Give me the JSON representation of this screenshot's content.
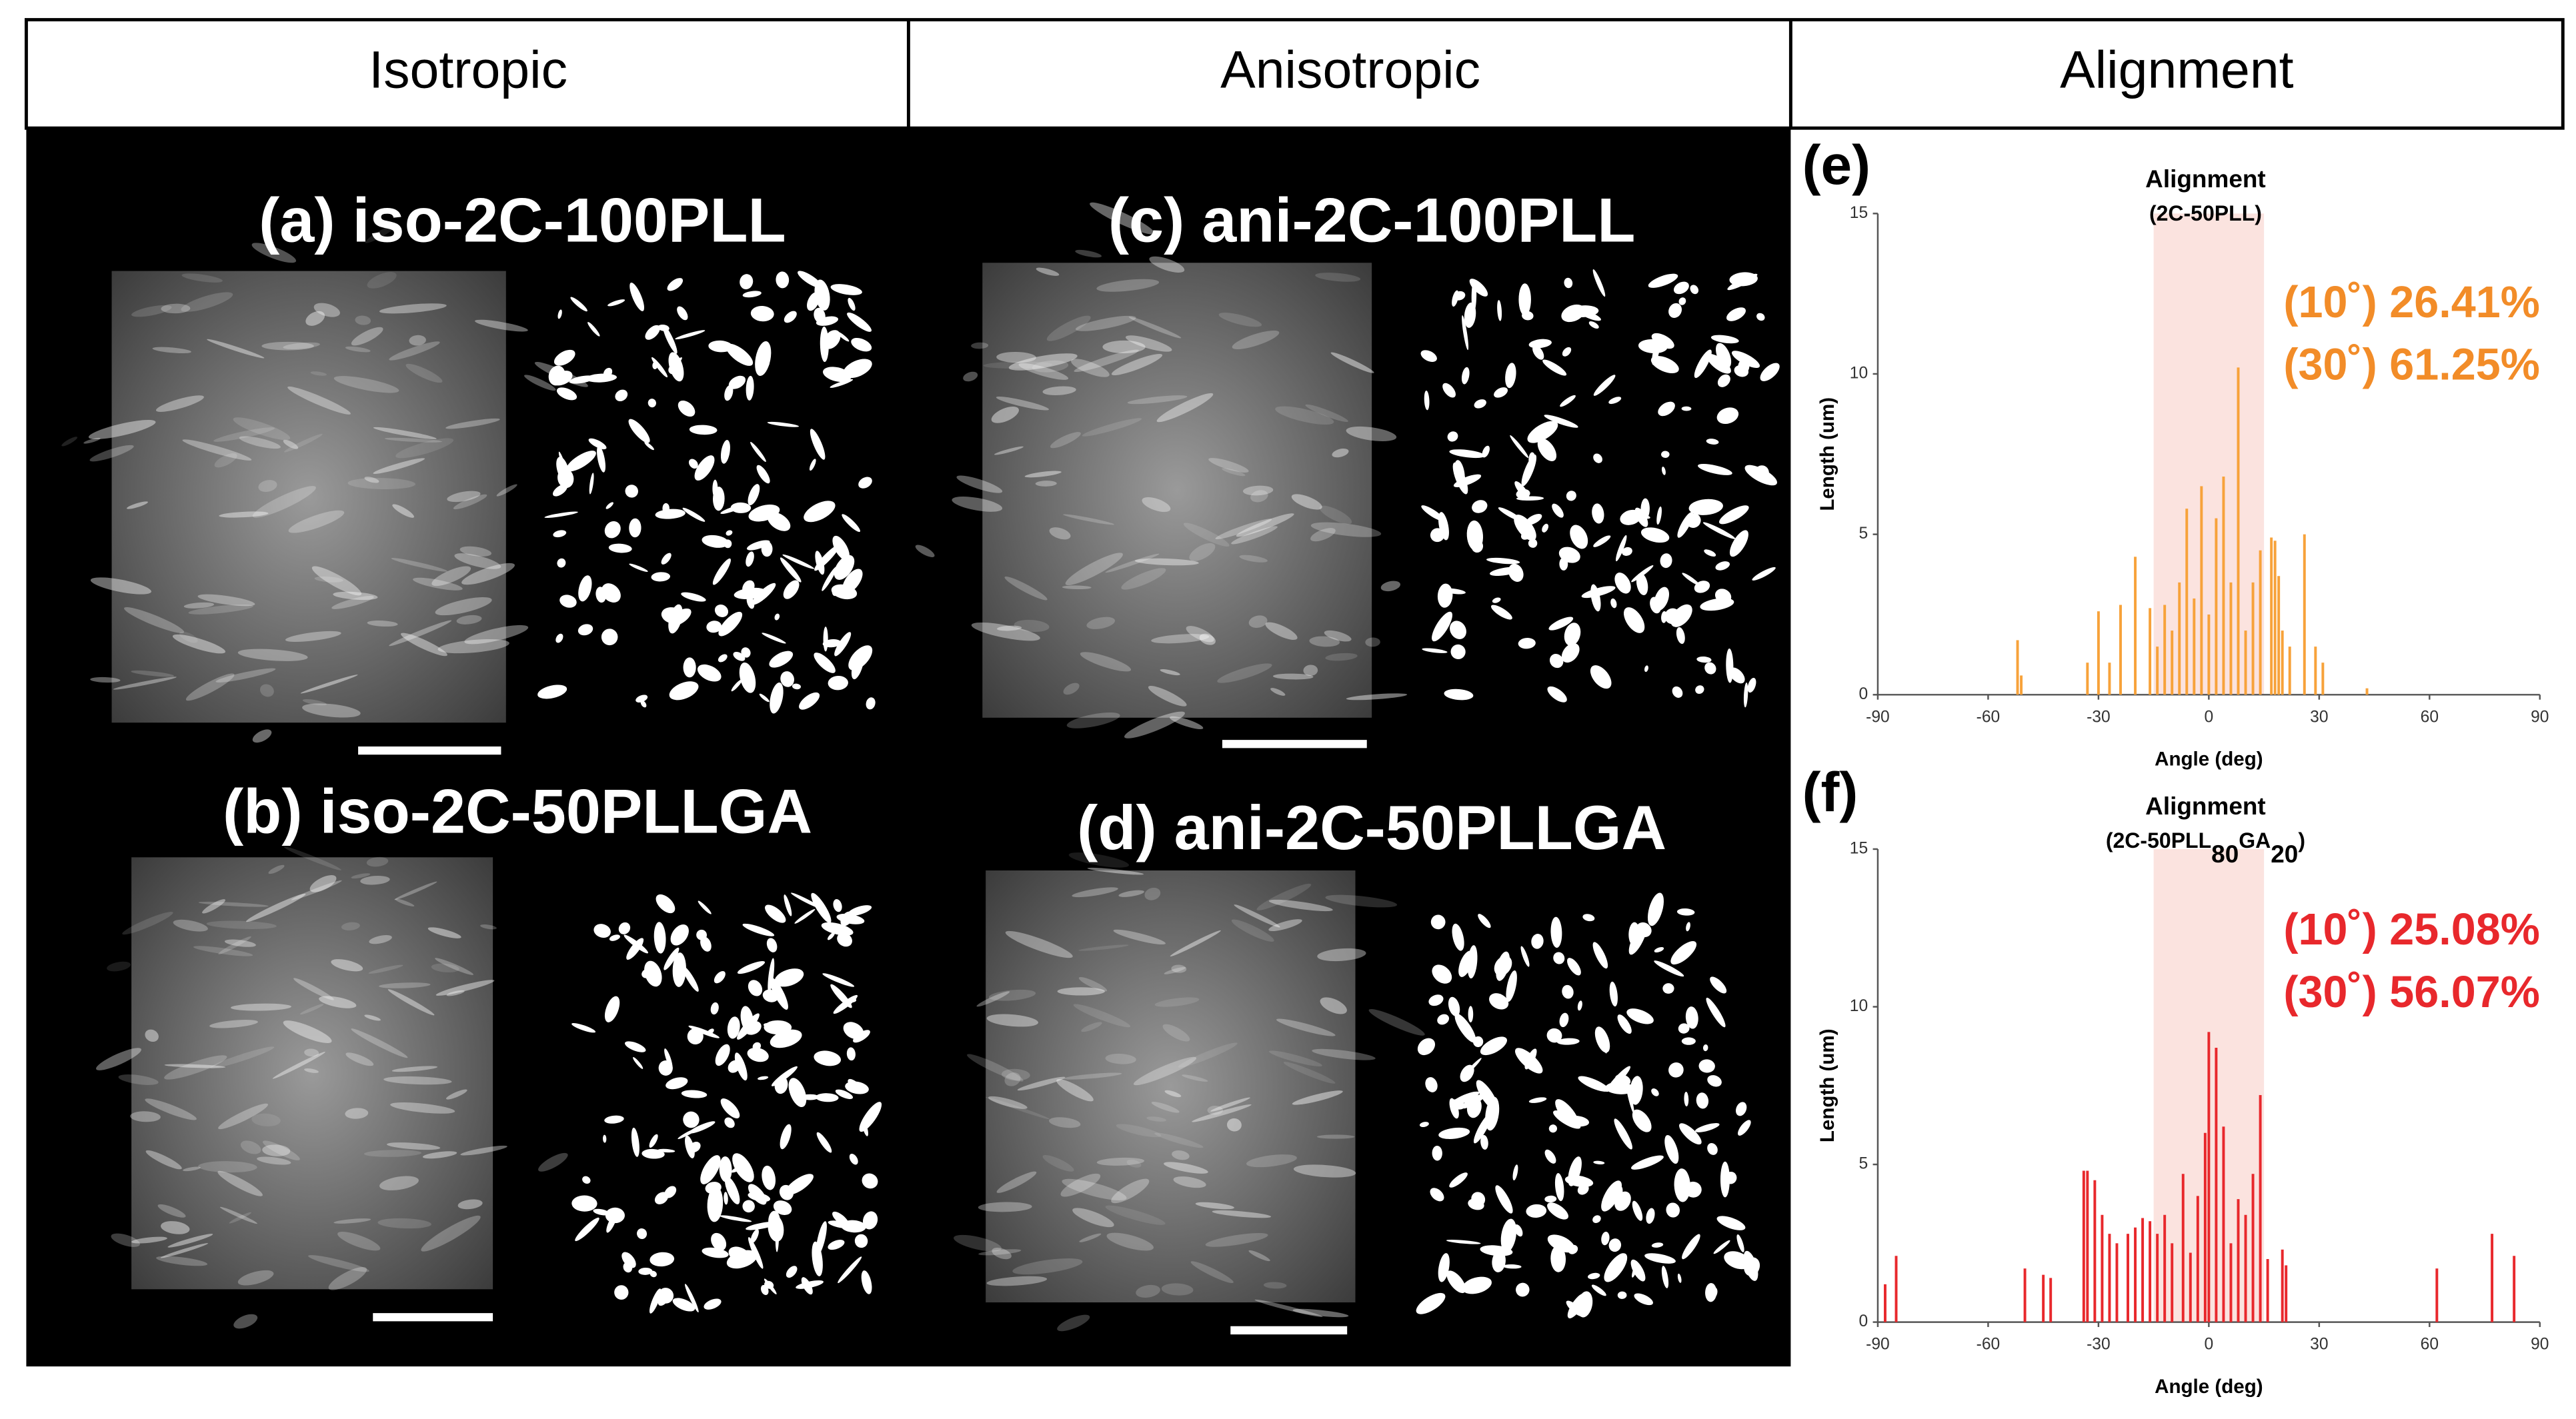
{
  "headers": [
    "Isotropic",
    "Anisotropic",
    "Alignment"
  ],
  "panels": [
    "(a) iso-2C-100PLL",
    "(b) iso-2C-50PLLGA",
    "(c) ani-2C-100PLL",
    "(d) ani-2C-50PLLGA"
  ],
  "chart_data": [
    {
      "type": "bar",
      "panel_label": "(e)",
      "title": "Alignment",
      "subtitle": [
        {
          "text": "(2C-50PLL)"
        }
      ],
      "xlabel": "Angle (deg)",
      "ylabel": "Length (um)",
      "x": [
        -52,
        -51,
        -33,
        -30,
        -27,
        -24,
        -20,
        -16,
        -14,
        -12,
        -10,
        -8,
        -6,
        -4,
        -2,
        0,
        2,
        4,
        6,
        8,
        10,
        12,
        14,
        17,
        18,
        19,
        20,
        22,
        26,
        29,
        31,
        43
      ],
      "values": [
        1.7,
        0.6,
        1,
        2.6,
        1,
        2.8,
        4.3,
        2.7,
        1.5,
        2.8,
        2,
        3.5,
        5.8,
        3,
        6.5,
        2.5,
        5.5,
        6.8,
        3.5,
        10.2,
        2,
        3.5,
        4.5,
        4.9,
        4.8,
        3.7,
        2,
        1.5,
        5,
        1.5,
        1,
        0.2
      ],
      "color": "#f7a23a",
      "highlight_range": [
        -15,
        15
      ],
      "highlight_color": "#fbe3df",
      "xlim": [
        -90,
        90
      ],
      "ylim": [
        0,
        15
      ],
      "xticks": [
        -90,
        -60,
        -30,
        0,
        30,
        60,
        90
      ],
      "yticks": [
        0,
        5,
        10,
        15
      ],
      "annotations": [
        "(10˚) 26.41%",
        "(30˚) 61.25%"
      ],
      "annotation_color": "#f28c28"
    },
    {
      "type": "bar",
      "panel_label": "(f)",
      "title": "Alignment",
      "subtitle": [
        {
          "text": "(2C-50PLL"
        },
        {
          "text": "80",
          "sub": true
        },
        {
          "text": "GA"
        },
        {
          "text": "20",
          "sub": true
        },
        {
          "text": ")"
        }
      ],
      "xlabel": "Angle (deg)",
      "ylabel": "Length (um)",
      "x": [
        -88,
        -85,
        -50,
        -45,
        -43,
        -34,
        -33,
        -31,
        -29,
        -27,
        -25,
        -22,
        -20,
        -18,
        -16,
        -14,
        -12,
        -10,
        -7,
        -5,
        -3,
        -1,
        0,
        2,
        4,
        6,
        8,
        10,
        12,
        14,
        16,
        20,
        21,
        62,
        77,
        83
      ],
      "values": [
        1.2,
        2.1,
        1.7,
        1.5,
        1.4,
        4.8,
        4.8,
        4.5,
        3.4,
        2.8,
        2.5,
        2.8,
        3,
        3.3,
        3.2,
        2.8,
        3.4,
        2.5,
        4.7,
        2.2,
        4,
        6,
        9.2,
        8.7,
        6.2,
        2.5,
        3.9,
        3.4,
        4.7,
        7.2,
        2,
        2.3,
        1.8,
        1.7,
        2.8,
        2.1
      ],
      "color": "#e8282c",
      "highlight_range": [
        -15,
        15
      ],
      "highlight_color": "#fbe3df",
      "xlim": [
        -90,
        90
      ],
      "ylim": [
        0,
        15
      ],
      "xticks": [
        -90,
        -60,
        -30,
        0,
        30,
        60,
        90
      ],
      "yticks": [
        0,
        5,
        10,
        15
      ],
      "annotations": [
        "(10˚) 25.08%",
        "(30˚) 56.07%"
      ],
      "annotation_color": "#e8282c"
    }
  ]
}
